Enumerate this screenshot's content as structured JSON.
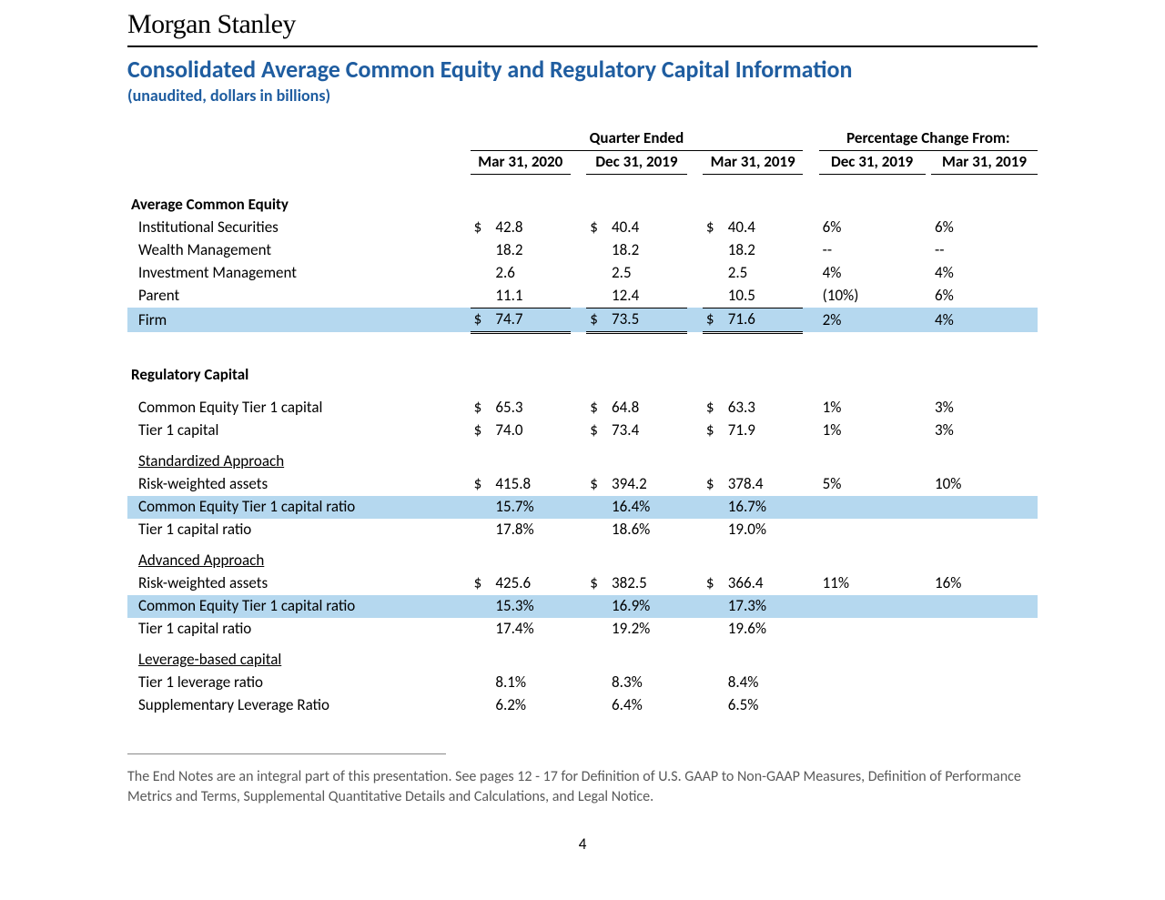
{
  "logo_text": "Morgan Stanley",
  "title": "Consolidated Average Common Equity and Regulatory Capital Information",
  "subtitle": "(unaudited, dollars in billions)",
  "headers": {
    "group_quarter": "Quarter Ended",
    "group_pct": "Percentage Change From:",
    "cols": [
      "Mar 31, 2020",
      "Dec 31, 2019",
      "Mar 31, 2019",
      "Dec 31, 2019",
      "Mar 31, 2019"
    ]
  },
  "sections": {
    "ace": {
      "title": "Average Common Equity",
      "rows": [
        {
          "label": "Institutional Securities",
          "sym": "$",
          "vals": [
            "42.8",
            "40.4",
            "40.4"
          ],
          "pcts": [
            "6%",
            "6%"
          ]
        },
        {
          "label": "Wealth Management",
          "sym": "",
          "vals": [
            "18.2",
            "18.2",
            "18.2"
          ],
          "pcts": [
            "--",
            "--"
          ]
        },
        {
          "label": "Investment Management",
          "sym": "",
          "vals": [
            "2.6",
            "2.5",
            "2.5"
          ],
          "pcts": [
            "4%",
            "4%"
          ]
        },
        {
          "label": "Parent",
          "sym": "",
          "vals": [
            "11.1",
            "12.4",
            "10.5"
          ],
          "pcts": [
            "(10%)",
            "6%"
          ]
        }
      ],
      "total": {
        "label": "Firm",
        "sym": "$",
        "vals": [
          "74.7",
          "73.5",
          "71.6"
        ],
        "pcts": [
          "2%",
          "4%"
        ]
      }
    },
    "reg": {
      "title": "Regulatory Capital",
      "rows_top": [
        {
          "label": "Common Equity Tier 1 capital",
          "sym": "$",
          "vals": [
            "65.3",
            "64.8",
            "63.3"
          ],
          "pcts": [
            "1%",
            "3%"
          ]
        },
        {
          "label": "Tier 1 capital",
          "sym": "$",
          "vals": [
            "74.0",
            "73.4",
            "71.9"
          ],
          "pcts": [
            "1%",
            "3%"
          ]
        }
      ],
      "std": {
        "title": "Standardized Approach",
        "rows": [
          {
            "label": "Risk-weighted assets",
            "sym": "$",
            "vals": [
              "415.8",
              "394.2",
              "378.4"
            ],
            "pcts": [
              "5%",
              "10%"
            ]
          },
          {
            "label": "Common Equity Tier 1 capital ratio",
            "sym": "",
            "vals": [
              "15.7%",
              "16.4%",
              "16.7%"
            ],
            "pcts": [
              "",
              ""
            ],
            "hl": true
          },
          {
            "label": "Tier 1 capital ratio",
            "sym": "",
            "vals": [
              "17.8%",
              "18.6%",
              "19.0%"
            ],
            "pcts": [
              "",
              ""
            ]
          }
        ]
      },
      "adv": {
        "title": "Advanced Approach",
        "rows": [
          {
            "label": "Risk-weighted assets",
            "sym": "$",
            "vals": [
              "425.6",
              "382.5",
              "366.4"
            ],
            "pcts": [
              "11%",
              "16%"
            ]
          },
          {
            "label": "Common Equity Tier 1 capital ratio",
            "sym": "",
            "vals": [
              "15.3%",
              "16.9%",
              "17.3%"
            ],
            "pcts": [
              "",
              ""
            ],
            "hl": true
          },
          {
            "label": "Tier 1 capital ratio",
            "sym": "",
            "vals": [
              "17.4%",
              "19.2%",
              "19.6%"
            ],
            "pcts": [
              "",
              ""
            ]
          }
        ]
      },
      "lev": {
        "title": "Leverage-based capital",
        "rows": [
          {
            "label": "Tier 1 leverage ratio",
            "sym": "",
            "vals": [
              "8.1%",
              "8.3%",
              "8.4%"
            ],
            "pcts": [
              "",
              ""
            ]
          },
          {
            "label": "Supplementary Leverage Ratio",
            "sym": "",
            "vals": [
              "6.2%",
              "6.4%",
              "6.5%"
            ],
            "pcts": [
              "",
              ""
            ]
          }
        ]
      }
    }
  },
  "footnote": "The End Notes are an integral part of this presentation.  See pages 12 - 17 for Definition of U.S. GAAP to Non-GAAP Measures, Definition of Performance Metrics and Terms, Supplemental Quantitative Details and Calculations, and Legal Notice.",
  "page_number": "4",
  "colors": {
    "title_color": "#1f5da0",
    "highlight_bg": "#b5d8ef",
    "footnote_color": "#595959"
  }
}
